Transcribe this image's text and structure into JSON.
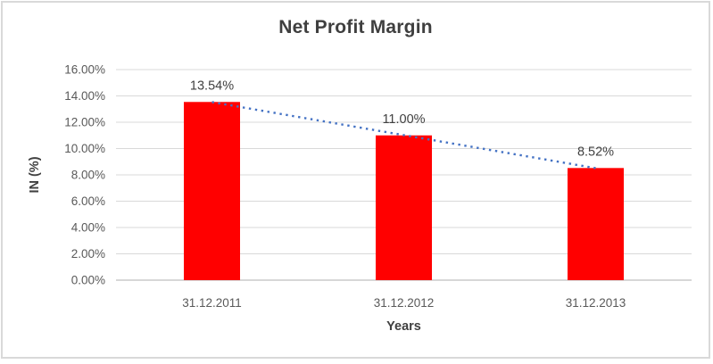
{
  "window": {
    "background": "#FFFFFF",
    "border_color": "#D9D9D9"
  },
  "chart_data": {
    "type": "bar",
    "title": "Net Profit Margin",
    "xlabel": "Years",
    "ylabel": "IN (%)",
    "categories": [
      "31.12.2011",
      "31.12.2012",
      "31.12.2013"
    ],
    "series": [
      {
        "name": "Net Profit Margin",
        "values": [
          13.54,
          11.0,
          8.52
        ]
      }
    ],
    "data_labels": [
      "13.54%",
      "11.00%",
      "8.52%"
    ],
    "ylim": [
      0,
      16
    ],
    "ytick_step": 2,
    "ytick_labels": [
      "0.00%",
      "2.00%",
      "4.00%",
      "6.00%",
      "8.00%",
      "10.00%",
      "12.00%",
      "14.00%",
      "16.00%"
    ],
    "grid": true,
    "legend": "none",
    "trendline": {
      "type": "linear",
      "style": "dotted",
      "color": "#4472C4"
    },
    "colors": {
      "bar": "#FF0000",
      "gridline": "#D9D9D9",
      "axis_line": "#BFBFBF",
      "title": "#3F3F3F",
      "axis_titles": "#404040",
      "tick_labels": "#595959",
      "data_labels": "#404040"
    }
  }
}
